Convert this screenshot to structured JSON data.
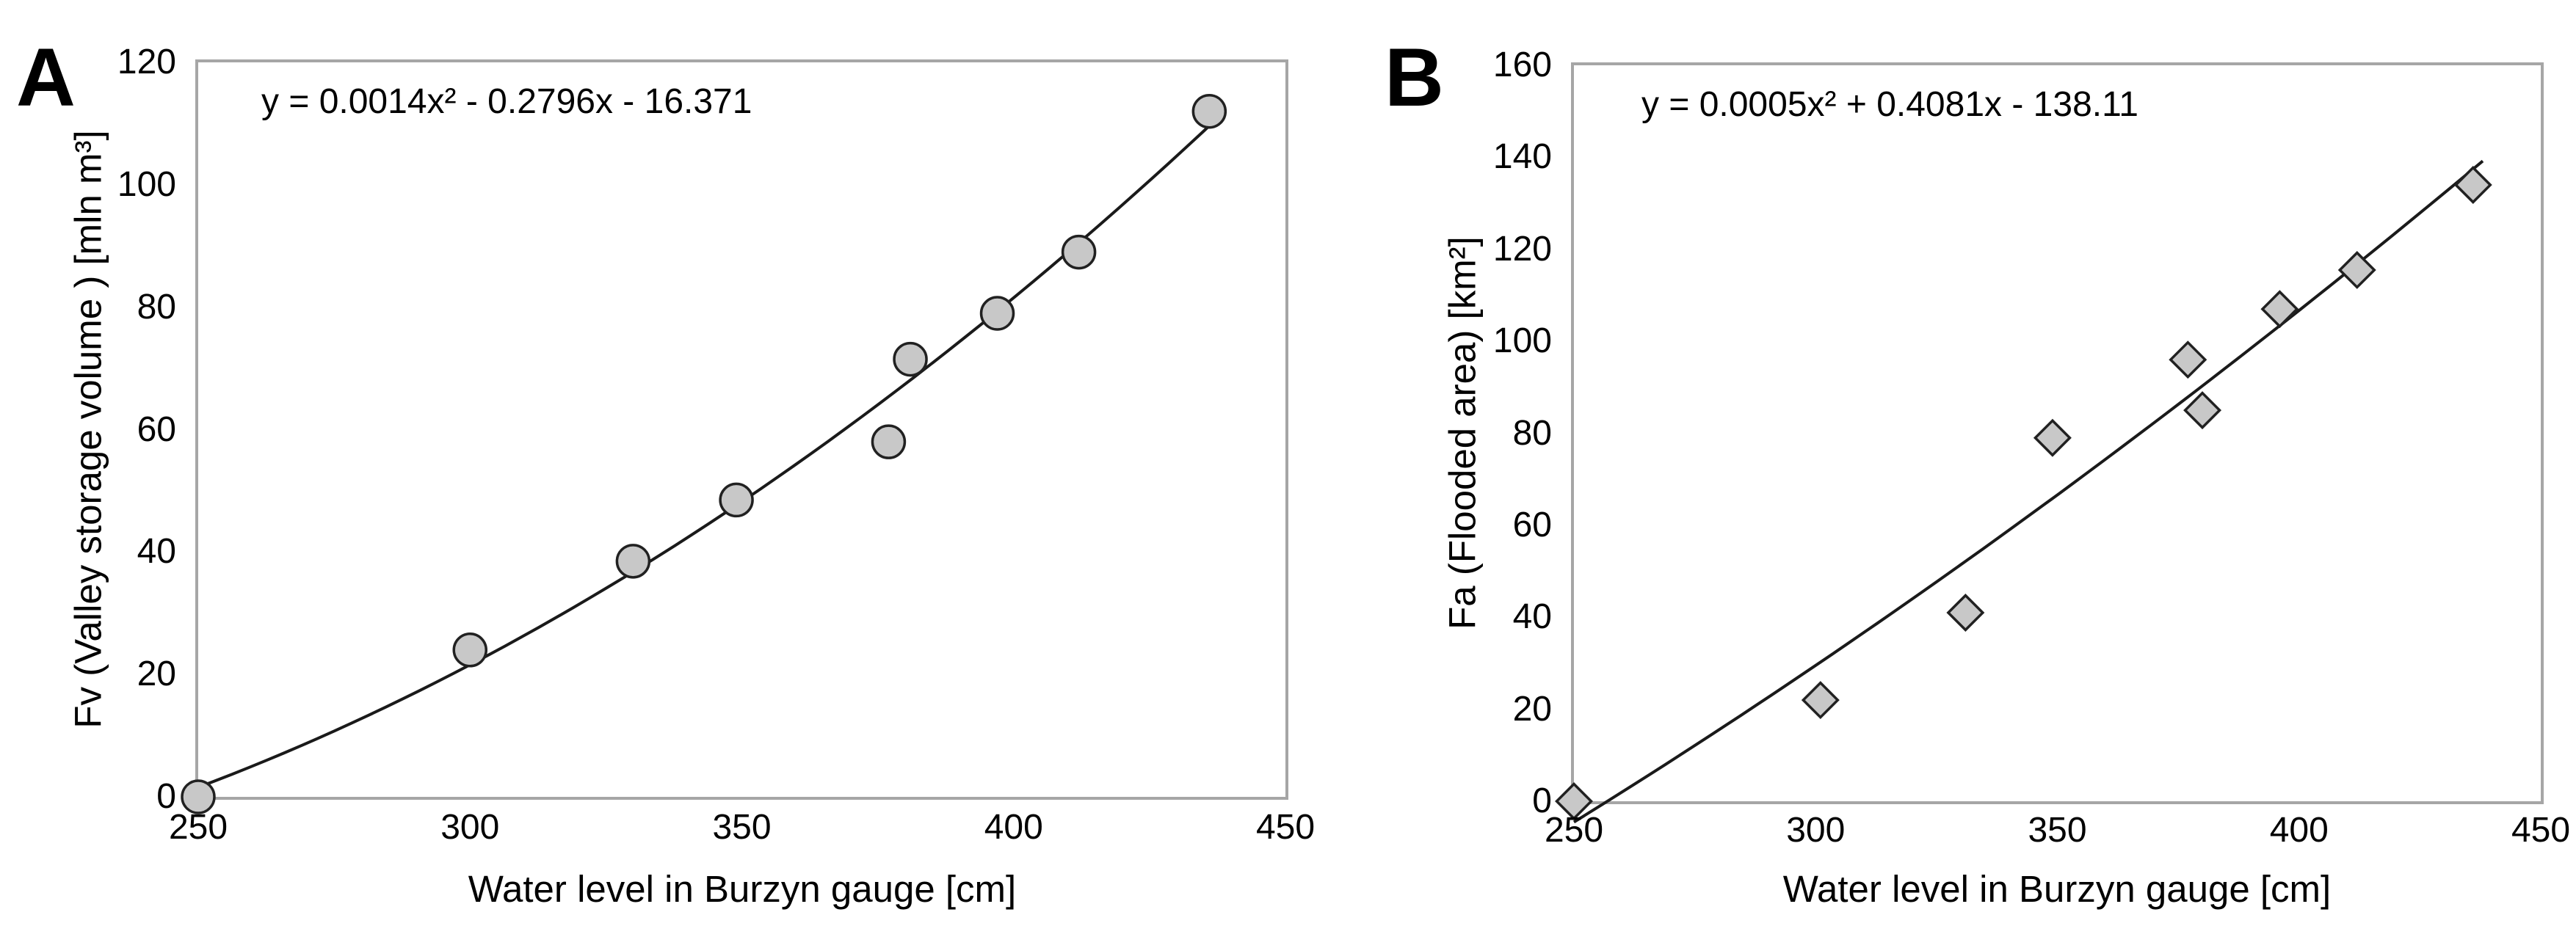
{
  "figure": {
    "description": "Two-panel scatter figure with quadratic trendlines relating water level at Burzyn gauge to valley storage volume (A) and flooded area (B)"
  },
  "colors": {
    "marker_fill": "#c8c8c8",
    "marker_stroke": "#212121",
    "trendline": "#1a1a1a",
    "plot_border": "#a6a6a6",
    "text": "#000000",
    "background": "#ffffff"
  },
  "chart_data": [
    {
      "type": "scatter",
      "panel_label": "A",
      "equation": "y = 0.0014x² - 0.2796x - 16.371",
      "xlabel": "Water level in Burzyn gauge [cm]",
      "ylabel": "Fv (Valley storage volume ) [mln m³]",
      "xlim": [
        250,
        450
      ],
      "ylim": [
        0,
        120
      ],
      "x_ticks": [
        250,
        300,
        350,
        400,
        450
      ],
      "y_ticks": [
        0,
        20,
        40,
        60,
        80,
        100,
        120
      ],
      "marker": "circle",
      "grid": false,
      "legend": "none",
      "points": [
        [
          250,
          0
        ],
        [
          300,
          24
        ],
        [
          330,
          38.5
        ],
        [
          349,
          48.5
        ],
        [
          377,
          58
        ],
        [
          381,
          71.5
        ],
        [
          397,
          79
        ],
        [
          412,
          89
        ],
        [
          436,
          112
        ]
      ],
      "trendline": {
        "type": "polynomial",
        "order": 2
      }
    },
    {
      "type": "scatter",
      "panel_label": "B",
      "equation": "y = 0.0005x² + 0.4081x - 138.11",
      "xlabel": "Water level in Burzyn gauge [cm]",
      "ylabel": "Fa (Flooded area) [km²]",
      "xlim": [
        250,
        450
      ],
      "ylim": [
        0,
        160
      ],
      "x_ticks": [
        250,
        300,
        350,
        400,
        450
      ],
      "y_ticks": [
        0,
        20,
        40,
        60,
        80,
        100,
        120,
        140,
        160
      ],
      "marker": "diamond",
      "grid": false,
      "legend": "none",
      "points": [
        [
          250,
          0
        ],
        [
          301,
          22
        ],
        [
          331,
          41
        ],
        [
          349,
          79
        ],
        [
          377,
          96
        ],
        [
          380,
          85
        ],
        [
          396,
          107
        ],
        [
          412,
          115.5
        ],
        [
          436,
          134
        ]
      ],
      "trendline": {
        "type": "polynomial",
        "order": 2
      }
    }
  ]
}
